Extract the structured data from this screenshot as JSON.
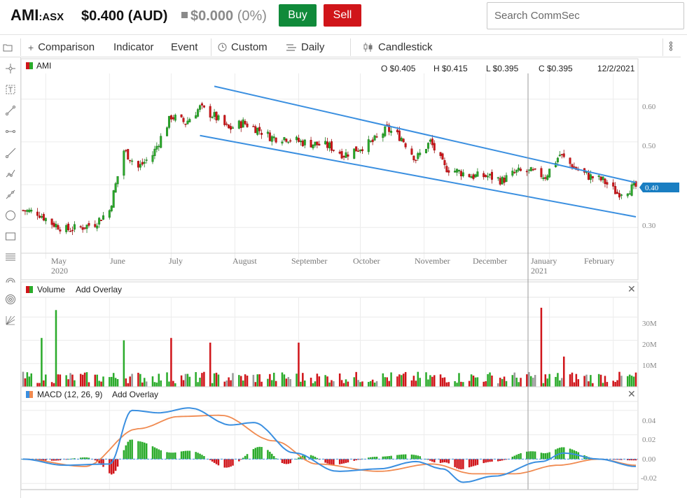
{
  "header": {
    "ticker": "AMI",
    "exchange": ":ASX",
    "price": "$0.400 (AUD)",
    "change_value": "$0.000",
    "change_pct": "(0%)",
    "buy_label": "Buy",
    "sell_label": "Sell",
    "search_placeholder": "Search CommSec"
  },
  "toolbar": {
    "comparison": "Comparison",
    "indicator": "Indicator",
    "event": "Event",
    "custom": "Custom",
    "daily": "Daily",
    "candlestick": "Candlestick"
  },
  "sidebar": {
    "tools": [
      "crosshair-icon",
      "text-tool-icon",
      "line-tool-icon",
      "horizontal-line-icon",
      "ray-tool-icon",
      "polyline-icon",
      "extended-line-icon",
      "circle-tool-icon",
      "rectangle-tool-icon",
      "fibonacci-icon",
      "arc-tool-icon",
      "spiral-tool-icon",
      "gann-fan-icon"
    ]
  },
  "price_panel": {
    "symbol": "AMI",
    "open": "O $0.405",
    "high": "H $0.415",
    "low": "L $0.395",
    "close": "C $0.395",
    "date": "12/2/2021",
    "current_price_tag": "0.40",
    "y_ticks": [
      "0.60",
      "0.50",
      "0.40",
      "0.30"
    ],
    "x_labels": [
      "May",
      "June",
      "July",
      "August",
      "September",
      "October",
      "November",
      "December",
      "January",
      "February"
    ],
    "year_labels": [
      "2020",
      "2021"
    ]
  },
  "volume_panel": {
    "title": "Volume",
    "add_overlay": "Add Overlay",
    "y_ticks": [
      "30M",
      "20M",
      "10M"
    ]
  },
  "macd_panel": {
    "title": "MACD (12, 26, 9)",
    "add_overlay": "Add Overlay",
    "y_ticks": [
      "0.04",
      "0.02",
      "0.00",
      "-0.02"
    ]
  },
  "colors": {
    "up": "#2bab2b",
    "down": "#d0151a",
    "neutral": "#999999",
    "trend_line": "#3a8fe0",
    "macd_line": "#3a8fe0",
    "signal_line": "#f08a50",
    "price_tag": "#1a7ec2",
    "buy": "#108a3a",
    "sell": "#d0151a"
  },
  "chart_data": [
    {
      "type": "candlestick",
      "title": "AMI",
      "ylim": [
        0.24,
        0.66
      ],
      "x_range": [
        "2020-04-20",
        "2021-02-12"
      ],
      "close_series": [
        [
          "2020-04-20",
          0.34
        ],
        [
          "2020-04-27",
          0.335
        ],
        [
          "2020-05-04",
          0.31
        ],
        [
          "2020-05-11",
          0.295
        ],
        [
          "2020-05-18",
          0.3
        ],
        [
          "2020-05-25",
          0.31
        ],
        [
          "2020-06-01",
          0.34
        ],
        [
          "2020-06-08",
          0.48
        ],
        [
          "2020-06-15",
          0.44
        ],
        [
          "2020-06-22",
          0.47
        ],
        [
          "2020-07-01",
          0.56
        ],
        [
          "2020-07-08",
          0.545
        ],
        [
          "2020-07-15",
          0.58
        ],
        [
          "2020-07-22",
          0.56
        ],
        [
          "2020-07-29",
          0.53
        ],
        [
          "2020-08-05",
          0.545
        ],
        [
          "2020-08-12",
          0.53
        ],
        [
          "2020-08-19",
          0.51
        ],
        [
          "2020-08-26",
          0.51
        ],
        [
          "2020-09-02",
          0.5
        ],
        [
          "2020-09-09",
          0.495
        ],
        [
          "2020-09-16",
          0.49
        ],
        [
          "2020-09-23",
          0.47
        ],
        [
          "2020-09-30",
          0.485
        ],
        [
          "2020-10-07",
          0.5
        ],
        [
          "2020-10-14",
          0.53
        ],
        [
          "2020-10-21",
          0.51
        ],
        [
          "2020-10-28",
          0.46
        ],
        [
          "2020-11-04",
          0.5
        ],
        [
          "2020-11-11",
          0.44
        ],
        [
          "2020-11-18",
          0.43
        ],
        [
          "2020-11-25",
          0.42
        ],
        [
          "2020-12-02",
          0.42
        ],
        [
          "2020-12-09",
          0.41
        ],
        [
          "2020-12-16",
          0.43
        ],
        [
          "2020-12-23",
          0.43
        ],
        [
          "2020-12-30",
          0.42
        ],
        [
          "2021-01-06",
          0.47
        ],
        [
          "2021-01-13",
          0.44
        ],
        [
          "2021-01-20",
          0.42
        ],
        [
          "2021-01-27",
          0.41
        ],
        [
          "2021-02-03",
          0.38
        ],
        [
          "2021-02-12",
          0.395
        ]
      ]
    },
    {
      "type": "bar",
      "title": "Volume",
      "ylim": [
        0,
        37000000
      ],
      "peaks": [
        [
          "2020-05-06",
          33000000
        ],
        [
          "2020-04-29",
          21000000
        ],
        [
          "2020-06-08",
          20000000
        ],
        [
          "2020-07-01",
          21000000
        ],
        [
          "2020-07-20",
          19000000
        ],
        [
          "2020-09-01",
          19000000
        ],
        [
          "2020-12-28",
          34000000
        ],
        [
          "2021-01-08",
          13000000
        ]
      ]
    },
    {
      "type": "line",
      "title": "MACD (12, 26, 9)",
      "ylim": [
        -0.025,
        0.045
      ],
      "series": [
        {
          "values": [
            [
              "2020-04-20",
              0.0
            ],
            [
              "2020-05-10",
              -0.005
            ],
            [
              "2020-06-01",
              -0.004
            ],
            [
              "2020-06-12",
              0.04
            ],
            [
              "2020-06-25",
              0.038
            ],
            [
              "2020-07-10",
              0.042
            ],
            [
              "2020-07-30",
              0.028
            ],
            [
              "2020-08-10",
              0.03
            ],
            [
              "2020-08-30",
              0.005
            ],
            [
              "2020-09-20",
              -0.01
            ],
            [
              "2020-10-10",
              -0.008
            ],
            [
              "2020-10-28",
              -0.002
            ],
            [
              "2020-11-10",
              -0.008
            ],
            [
              "2020-11-20",
              -0.019
            ],
            [
              "2020-12-05",
              -0.014
            ],
            [
              "2020-12-28",
              -0.002
            ],
            [
              "2021-01-08",
              0.005
            ],
            [
              "2021-01-25",
              0.0
            ],
            [
              "2021-02-12",
              -0.006
            ]
          ]
        },
        {
          "values": [
            [
              "2020-04-20",
              0.0
            ],
            [
              "2020-05-20",
              -0.006
            ],
            [
              "2020-06-15",
              0.025
            ],
            [
              "2020-07-05",
              0.035
            ],
            [
              "2020-07-25",
              0.036
            ],
            [
              "2020-08-20",
              0.015
            ],
            [
              "2020-09-10",
              -0.004
            ],
            [
              "2020-10-10",
              -0.01
            ],
            [
              "2020-11-05",
              -0.004
            ],
            [
              "2020-11-25",
              -0.012
            ],
            [
              "2020-12-15",
              -0.012
            ],
            [
              "2021-01-05",
              -0.005
            ],
            [
              "2021-01-25",
              0.0
            ],
            [
              "2021-02-12",
              -0.005
            ]
          ]
        }
      ]
    }
  ]
}
